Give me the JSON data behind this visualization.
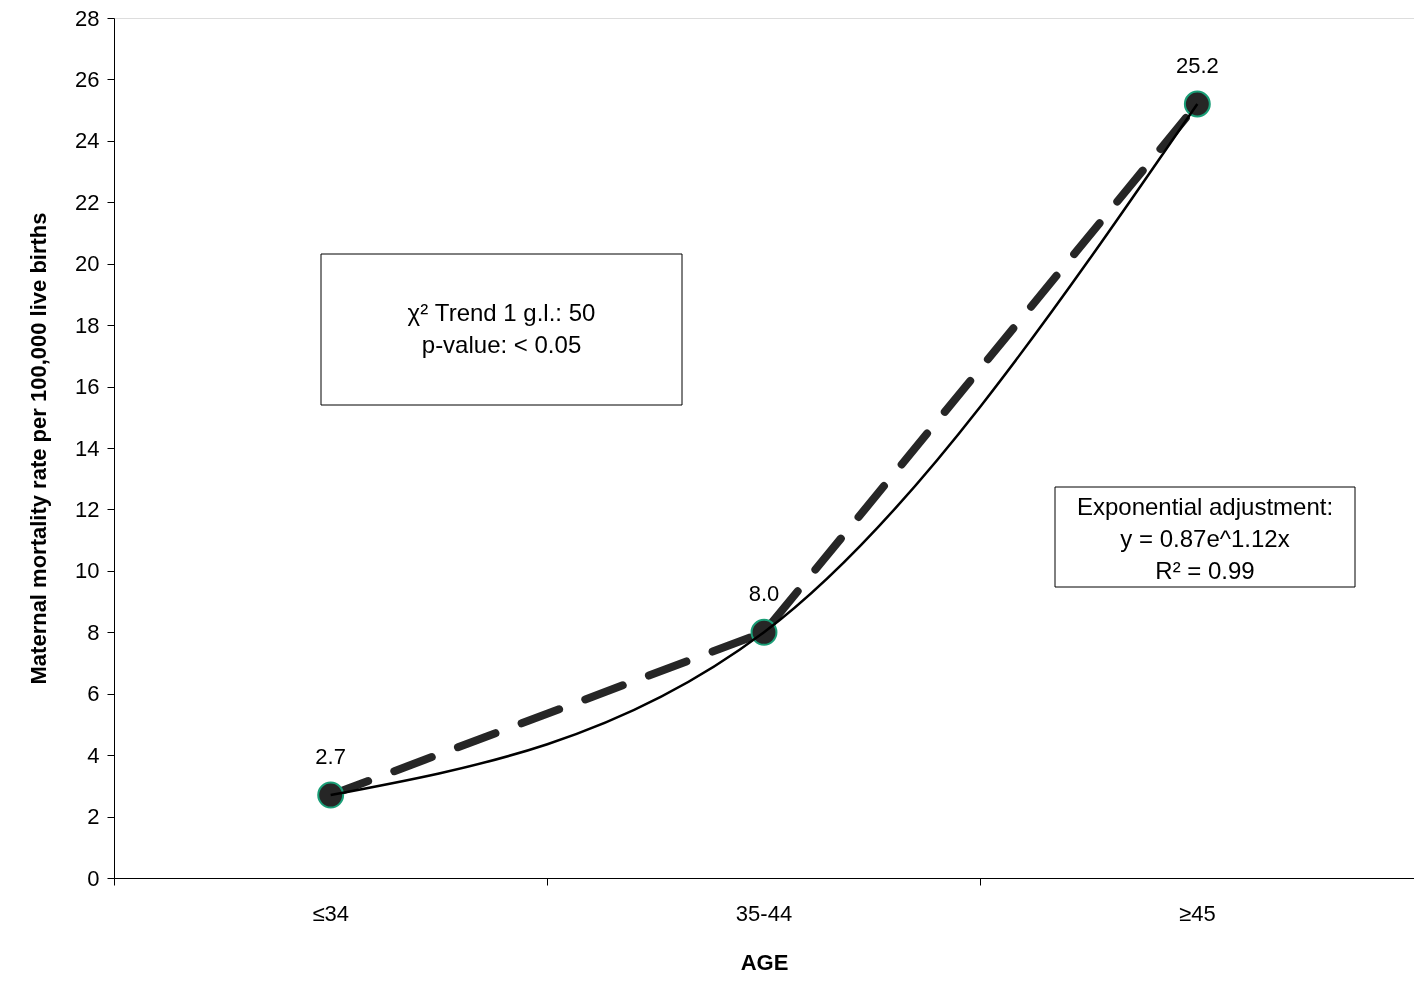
{
  "chart_data": {
    "type": "line",
    "xlabel": "AGE",
    "ylabel": "Maternal mortality rate per 100,000 live births",
    "categories": [
      "≤34",
      "35-44",
      "≥45"
    ],
    "ylim": [
      0,
      28
    ],
    "yticks": [
      0,
      2,
      4,
      6,
      8,
      10,
      12,
      14,
      16,
      18,
      20,
      22,
      24,
      26,
      28
    ],
    "grid": false,
    "annotations": [
      "χ² Trend 1 g.l.: 50\np-value: < 0.05",
      "Exponential adjustment:\ny = 0.87e^1.12x\nR² = 0.99"
    ],
    "series": [
      {
        "color": "#262626",
        "values": [
          2.7,
          8.0,
          25.2
        ],
        "value_labels": [
          "2.7",
          "8.0",
          "25.2"
        ],
        "line_style": "dashed",
        "marker": "circle"
      },
      {
        "type": "line",
        "color": "#000000",
        "values": [
          2.7,
          8.0,
          25.2
        ],
        "line_style": "solid",
        "marker": "none"
      }
    ]
  }
}
